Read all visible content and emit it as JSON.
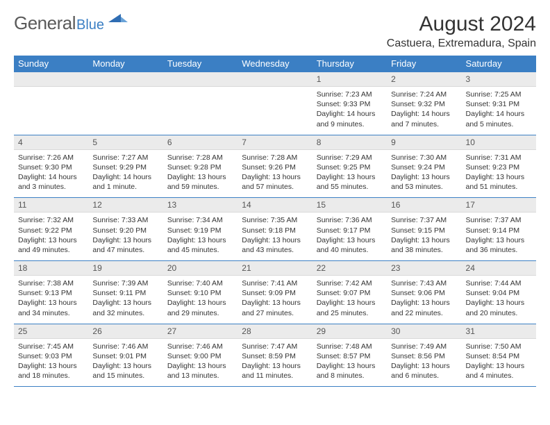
{
  "logo": {
    "general": "General",
    "blue": "Blue"
  },
  "title": "August 2024",
  "location": "Castuera, Extremadura, Spain",
  "colors": {
    "header_bg": "#3b7fc4",
    "header_fg": "#ffffff",
    "daynum_bg": "#ebebeb",
    "border": "#3b7fc4",
    "text": "#333333",
    "logo_gray": "#5a5a5a",
    "logo_blue": "#3b7fc4"
  },
  "weekdays": [
    "Sunday",
    "Monday",
    "Tuesday",
    "Wednesday",
    "Thursday",
    "Friday",
    "Saturday"
  ],
  "weeks": [
    [
      {
        "blank": true
      },
      {
        "blank": true
      },
      {
        "blank": true
      },
      {
        "blank": true
      },
      {
        "day": "1",
        "sunrise": "Sunrise: 7:23 AM",
        "sunset": "Sunset: 9:33 PM",
        "daylight1": "Daylight: 14 hours",
        "daylight2": "and 9 minutes."
      },
      {
        "day": "2",
        "sunrise": "Sunrise: 7:24 AM",
        "sunset": "Sunset: 9:32 PM",
        "daylight1": "Daylight: 14 hours",
        "daylight2": "and 7 minutes."
      },
      {
        "day": "3",
        "sunrise": "Sunrise: 7:25 AM",
        "sunset": "Sunset: 9:31 PM",
        "daylight1": "Daylight: 14 hours",
        "daylight2": "and 5 minutes."
      }
    ],
    [
      {
        "day": "4",
        "sunrise": "Sunrise: 7:26 AM",
        "sunset": "Sunset: 9:30 PM",
        "daylight1": "Daylight: 14 hours",
        "daylight2": "and 3 minutes."
      },
      {
        "day": "5",
        "sunrise": "Sunrise: 7:27 AM",
        "sunset": "Sunset: 9:29 PM",
        "daylight1": "Daylight: 14 hours",
        "daylight2": "and 1 minute."
      },
      {
        "day": "6",
        "sunrise": "Sunrise: 7:28 AM",
        "sunset": "Sunset: 9:28 PM",
        "daylight1": "Daylight: 13 hours",
        "daylight2": "and 59 minutes."
      },
      {
        "day": "7",
        "sunrise": "Sunrise: 7:28 AM",
        "sunset": "Sunset: 9:26 PM",
        "daylight1": "Daylight: 13 hours",
        "daylight2": "and 57 minutes."
      },
      {
        "day": "8",
        "sunrise": "Sunrise: 7:29 AM",
        "sunset": "Sunset: 9:25 PM",
        "daylight1": "Daylight: 13 hours",
        "daylight2": "and 55 minutes."
      },
      {
        "day": "9",
        "sunrise": "Sunrise: 7:30 AM",
        "sunset": "Sunset: 9:24 PM",
        "daylight1": "Daylight: 13 hours",
        "daylight2": "and 53 minutes."
      },
      {
        "day": "10",
        "sunrise": "Sunrise: 7:31 AM",
        "sunset": "Sunset: 9:23 PM",
        "daylight1": "Daylight: 13 hours",
        "daylight2": "and 51 minutes."
      }
    ],
    [
      {
        "day": "11",
        "sunrise": "Sunrise: 7:32 AM",
        "sunset": "Sunset: 9:22 PM",
        "daylight1": "Daylight: 13 hours",
        "daylight2": "and 49 minutes."
      },
      {
        "day": "12",
        "sunrise": "Sunrise: 7:33 AM",
        "sunset": "Sunset: 9:20 PM",
        "daylight1": "Daylight: 13 hours",
        "daylight2": "and 47 minutes."
      },
      {
        "day": "13",
        "sunrise": "Sunrise: 7:34 AM",
        "sunset": "Sunset: 9:19 PM",
        "daylight1": "Daylight: 13 hours",
        "daylight2": "and 45 minutes."
      },
      {
        "day": "14",
        "sunrise": "Sunrise: 7:35 AM",
        "sunset": "Sunset: 9:18 PM",
        "daylight1": "Daylight: 13 hours",
        "daylight2": "and 43 minutes."
      },
      {
        "day": "15",
        "sunrise": "Sunrise: 7:36 AM",
        "sunset": "Sunset: 9:17 PM",
        "daylight1": "Daylight: 13 hours",
        "daylight2": "and 40 minutes."
      },
      {
        "day": "16",
        "sunrise": "Sunrise: 7:37 AM",
        "sunset": "Sunset: 9:15 PM",
        "daylight1": "Daylight: 13 hours",
        "daylight2": "and 38 minutes."
      },
      {
        "day": "17",
        "sunrise": "Sunrise: 7:37 AM",
        "sunset": "Sunset: 9:14 PM",
        "daylight1": "Daylight: 13 hours",
        "daylight2": "and 36 minutes."
      }
    ],
    [
      {
        "day": "18",
        "sunrise": "Sunrise: 7:38 AM",
        "sunset": "Sunset: 9:13 PM",
        "daylight1": "Daylight: 13 hours",
        "daylight2": "and 34 minutes."
      },
      {
        "day": "19",
        "sunrise": "Sunrise: 7:39 AM",
        "sunset": "Sunset: 9:11 PM",
        "daylight1": "Daylight: 13 hours",
        "daylight2": "and 32 minutes."
      },
      {
        "day": "20",
        "sunrise": "Sunrise: 7:40 AM",
        "sunset": "Sunset: 9:10 PM",
        "daylight1": "Daylight: 13 hours",
        "daylight2": "and 29 minutes."
      },
      {
        "day": "21",
        "sunrise": "Sunrise: 7:41 AM",
        "sunset": "Sunset: 9:09 PM",
        "daylight1": "Daylight: 13 hours",
        "daylight2": "and 27 minutes."
      },
      {
        "day": "22",
        "sunrise": "Sunrise: 7:42 AM",
        "sunset": "Sunset: 9:07 PM",
        "daylight1": "Daylight: 13 hours",
        "daylight2": "and 25 minutes."
      },
      {
        "day": "23",
        "sunrise": "Sunrise: 7:43 AM",
        "sunset": "Sunset: 9:06 PM",
        "daylight1": "Daylight: 13 hours",
        "daylight2": "and 22 minutes."
      },
      {
        "day": "24",
        "sunrise": "Sunrise: 7:44 AM",
        "sunset": "Sunset: 9:04 PM",
        "daylight1": "Daylight: 13 hours",
        "daylight2": "and 20 minutes."
      }
    ],
    [
      {
        "day": "25",
        "sunrise": "Sunrise: 7:45 AM",
        "sunset": "Sunset: 9:03 PM",
        "daylight1": "Daylight: 13 hours",
        "daylight2": "and 18 minutes."
      },
      {
        "day": "26",
        "sunrise": "Sunrise: 7:46 AM",
        "sunset": "Sunset: 9:01 PM",
        "daylight1": "Daylight: 13 hours",
        "daylight2": "and 15 minutes."
      },
      {
        "day": "27",
        "sunrise": "Sunrise: 7:46 AM",
        "sunset": "Sunset: 9:00 PM",
        "daylight1": "Daylight: 13 hours",
        "daylight2": "and 13 minutes."
      },
      {
        "day": "28",
        "sunrise": "Sunrise: 7:47 AM",
        "sunset": "Sunset: 8:59 PM",
        "daylight1": "Daylight: 13 hours",
        "daylight2": "and 11 minutes."
      },
      {
        "day": "29",
        "sunrise": "Sunrise: 7:48 AM",
        "sunset": "Sunset: 8:57 PM",
        "daylight1": "Daylight: 13 hours",
        "daylight2": "and 8 minutes."
      },
      {
        "day": "30",
        "sunrise": "Sunrise: 7:49 AM",
        "sunset": "Sunset: 8:56 PM",
        "daylight1": "Daylight: 13 hours",
        "daylight2": "and 6 minutes."
      },
      {
        "day": "31",
        "sunrise": "Sunrise: 7:50 AM",
        "sunset": "Sunset: 8:54 PM",
        "daylight1": "Daylight: 13 hours",
        "daylight2": "and 4 minutes."
      }
    ]
  ]
}
